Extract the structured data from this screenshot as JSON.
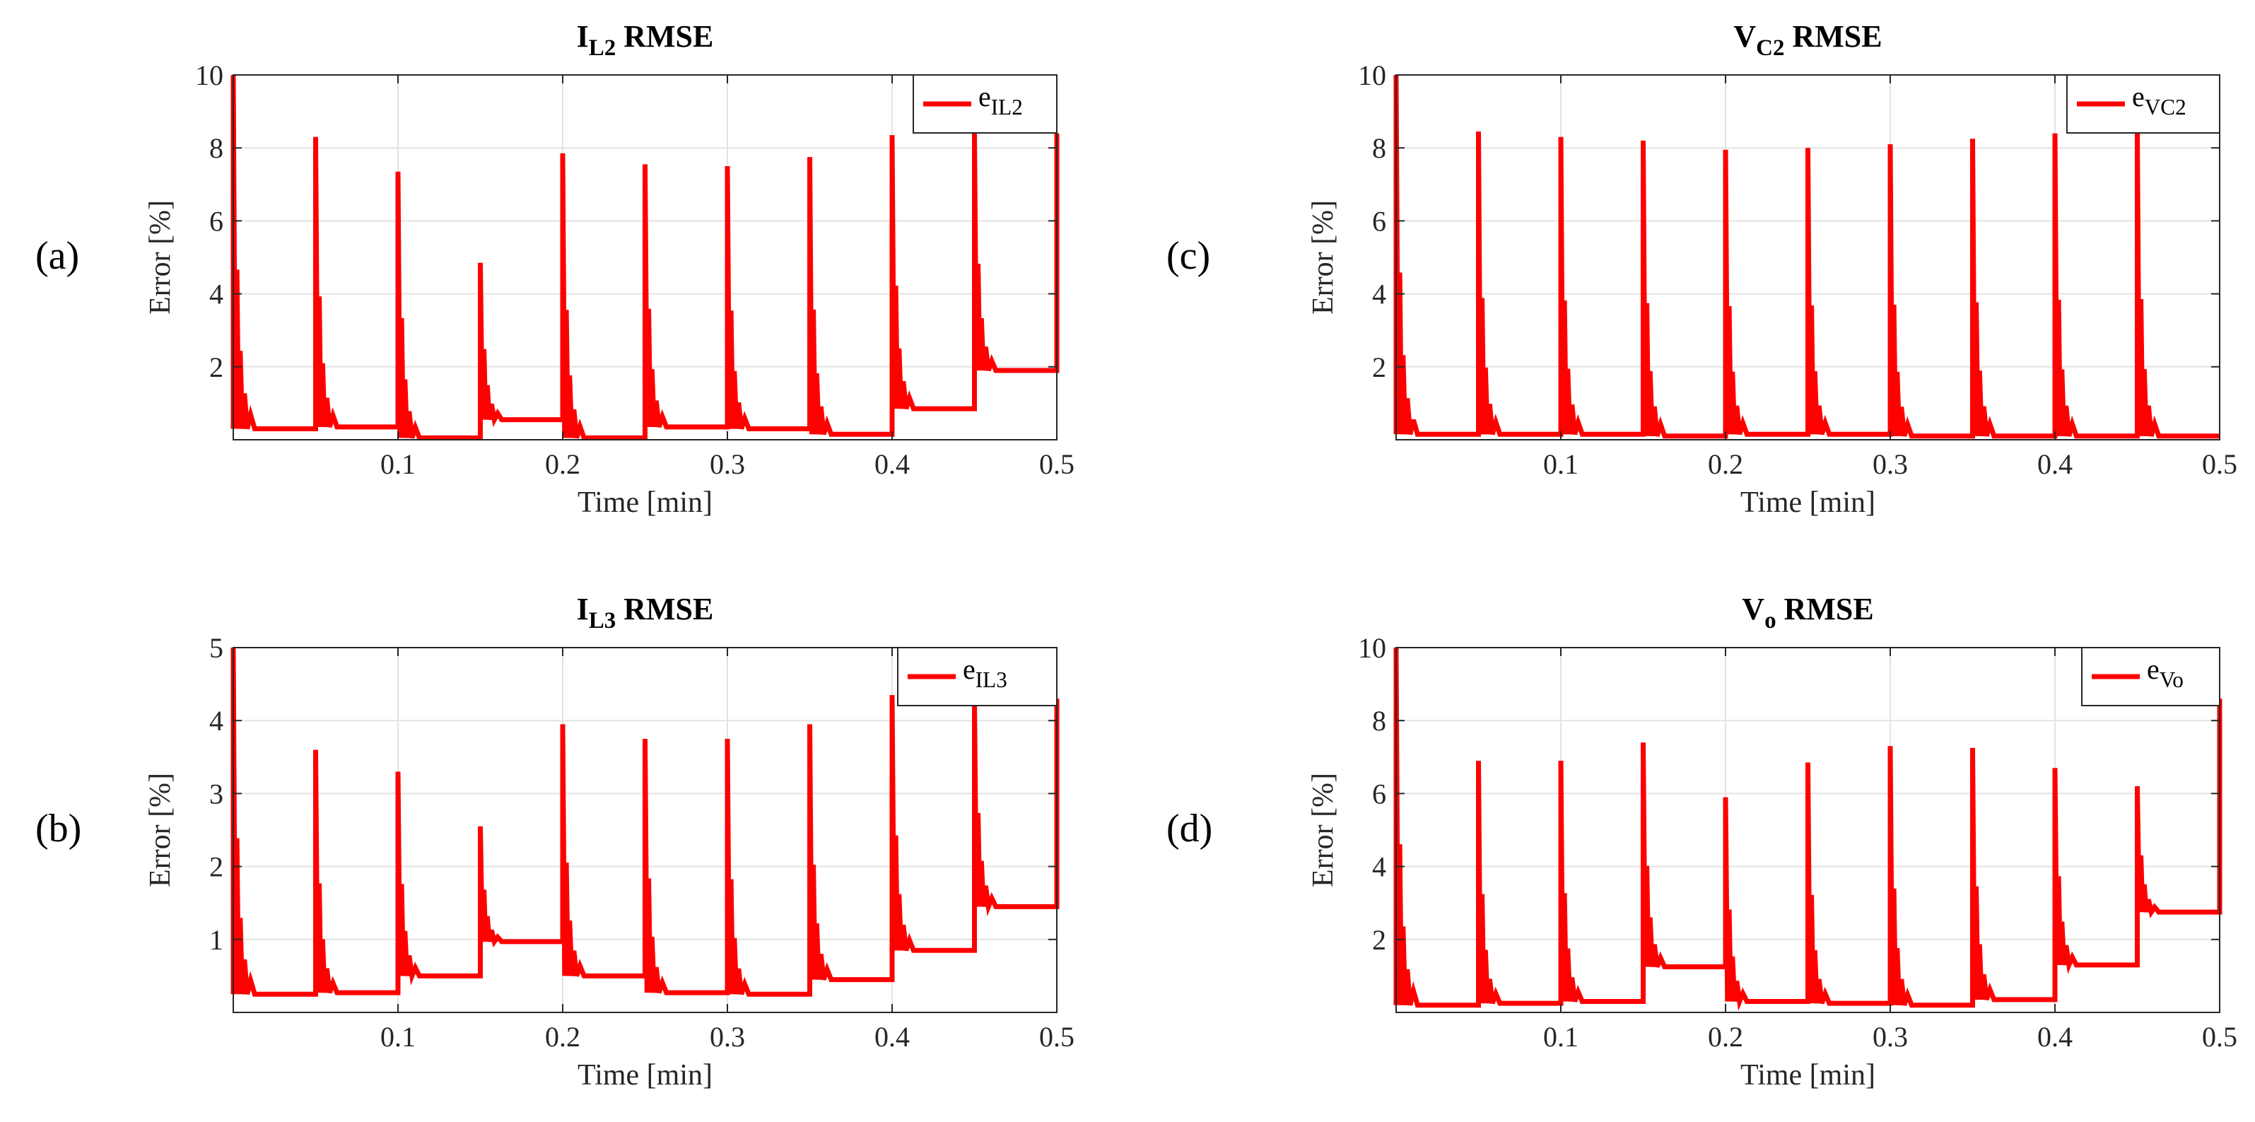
{
  "colors": {
    "series": "#ff0000",
    "axis": "#262626",
    "grid": "#e3e3e3"
  },
  "chart_data": [
    {
      "panel_label": "(a)",
      "type": "line",
      "title_main": "I",
      "title_sub": "L2",
      "title_rest": " RMSE",
      "xlabel": "Time [min]",
      "ylabel": "Error [%]",
      "xlim": [
        0,
        0.5
      ],
      "ylim": [
        0,
        10
      ],
      "xticks": [
        0.1,
        0.2,
        0.3,
        0.4,
        0.5
      ],
      "xtick_labels": [
        "0.1",
        "0.2",
        "0.3",
        "0.4",
        "0.5"
      ],
      "yticks": [
        2,
        4,
        6,
        8,
        10
      ],
      "ytick_labels": [
        "2",
        "4",
        "6",
        "8",
        "10"
      ],
      "legend_main": "e",
      "legend_sub": "IL2",
      "legend_location": "top-right",
      "grid": true,
      "series": [
        {
          "name": "e_IL2",
          "spike_times": [
            0,
            0.05,
            0.1,
            0.15,
            0.2,
            0.25,
            0.3,
            0.35,
            0.4,
            0.45
          ],
          "spike_peaks": [
            10,
            8.3,
            7.35,
            4.85,
            7.85,
            7.55,
            7.5,
            7.75,
            8.35,
            8.4
          ],
          "steady_levels": [
            0.3,
            0.35,
            0.05,
            0.55,
            0.05,
            0.35,
            0.3,
            0.15,
            0.85,
            1.9
          ],
          "end_value": 8.4
        }
      ]
    },
    {
      "panel_label": "(b)",
      "type": "line",
      "title_main": "I",
      "title_sub": "L3",
      "title_rest": " RMSE",
      "xlabel": "Time [min]",
      "ylabel": "Error [%]",
      "xlim": [
        0,
        0.5
      ],
      "ylim": [
        0,
        5
      ],
      "xticks": [
        0.1,
        0.2,
        0.3,
        0.4,
        0.5
      ],
      "xtick_labels": [
        "0.1",
        "0.2",
        "0.3",
        "0.4",
        "0.5"
      ],
      "yticks": [
        1,
        2,
        3,
        4,
        5
      ],
      "ytick_labels": [
        "1",
        "2",
        "3",
        "4",
        "5"
      ],
      "legend_main": "e",
      "legend_sub": "IL3",
      "legend_location": "top-right",
      "grid": true,
      "series": [
        {
          "name": "e_IL3",
          "spike_times": [
            0,
            0.05,
            0.1,
            0.15,
            0.2,
            0.25,
            0.3,
            0.35,
            0.4,
            0.45
          ],
          "spike_peaks": [
            5,
            3.6,
            3.3,
            2.55,
            3.95,
            3.75,
            3.75,
            3.95,
            4.35,
            4.3
          ],
          "steady_levels": [
            0.25,
            0.27,
            0.5,
            0.97,
            0.5,
            0.27,
            0.25,
            0.45,
            0.85,
            1.45
          ],
          "end_value": 4.3
        }
      ]
    },
    {
      "panel_label": "(c)",
      "type": "line",
      "title_main": "V",
      "title_sub": "C2",
      "title_rest": " RMSE",
      "xlabel": "Time [min]",
      "ylabel": "Error [%]",
      "xlim": [
        0,
        0.5
      ],
      "ylim": [
        0,
        10
      ],
      "xticks": [
        0.1,
        0.2,
        0.3,
        0.4,
        0.5
      ],
      "xtick_labels": [
        "0.1",
        "0.2",
        "0.3",
        "0.4",
        "0.5"
      ],
      "yticks": [
        2,
        4,
        6,
        8,
        10
      ],
      "ytick_labels": [
        "2",
        "4",
        "6",
        "8",
        "10"
      ],
      "legend_main": "e",
      "legend_sub": "VC2",
      "legend_location": "top-right",
      "grid": true,
      "series": [
        {
          "name": "e_VC2",
          "spike_times": [
            0,
            0.05,
            0.1,
            0.15,
            0.2,
            0.25,
            0.3,
            0.35,
            0.4,
            0.45
          ],
          "spike_peaks": [
            10,
            8.45,
            8.3,
            8.2,
            7.95,
            8.0,
            8.1,
            8.25,
            8.4,
            8.45
          ],
          "steady_levels": [
            0.15,
            0.15,
            0.15,
            0.1,
            0.15,
            0.15,
            0.1,
            0.1,
            0.1,
            0.1
          ],
          "end_value": 0.1
        }
      ]
    },
    {
      "panel_label": "(d)",
      "type": "line",
      "title_main": "V",
      "title_sub": "o",
      "title_rest": " RMSE",
      "xlabel": "Time [min]",
      "ylabel": "Error [%]",
      "xlim": [
        0,
        0.5
      ],
      "ylim": [
        0,
        10
      ],
      "xticks": [
        0.1,
        0.2,
        0.3,
        0.4,
        0.5
      ],
      "xtick_labels": [
        "0.1",
        "0.2",
        "0.3",
        "0.4",
        "0.5"
      ],
      "yticks": [
        2,
        4,
        6,
        8,
        10
      ],
      "ytick_labels": [
        "2",
        "4",
        "6",
        "8",
        "10"
      ],
      "legend_main": "e",
      "legend_sub": "Vo",
      "legend_location": "top-right",
      "grid": true,
      "series": [
        {
          "name": "e_Vo",
          "spike_times": [
            0,
            0.05,
            0.1,
            0.15,
            0.2,
            0.25,
            0.3,
            0.35,
            0.4,
            0.45
          ],
          "spike_peaks": [
            10,
            6.9,
            6.9,
            7.4,
            5.9,
            6.85,
            7.3,
            7.25,
            6.7,
            6.2
          ],
          "steady_levels": [
            0.2,
            0.25,
            0.3,
            1.25,
            0.3,
            0.25,
            0.2,
            0.35,
            1.3,
            2.75
          ],
          "end_value": 8.6
        }
      ]
    }
  ]
}
